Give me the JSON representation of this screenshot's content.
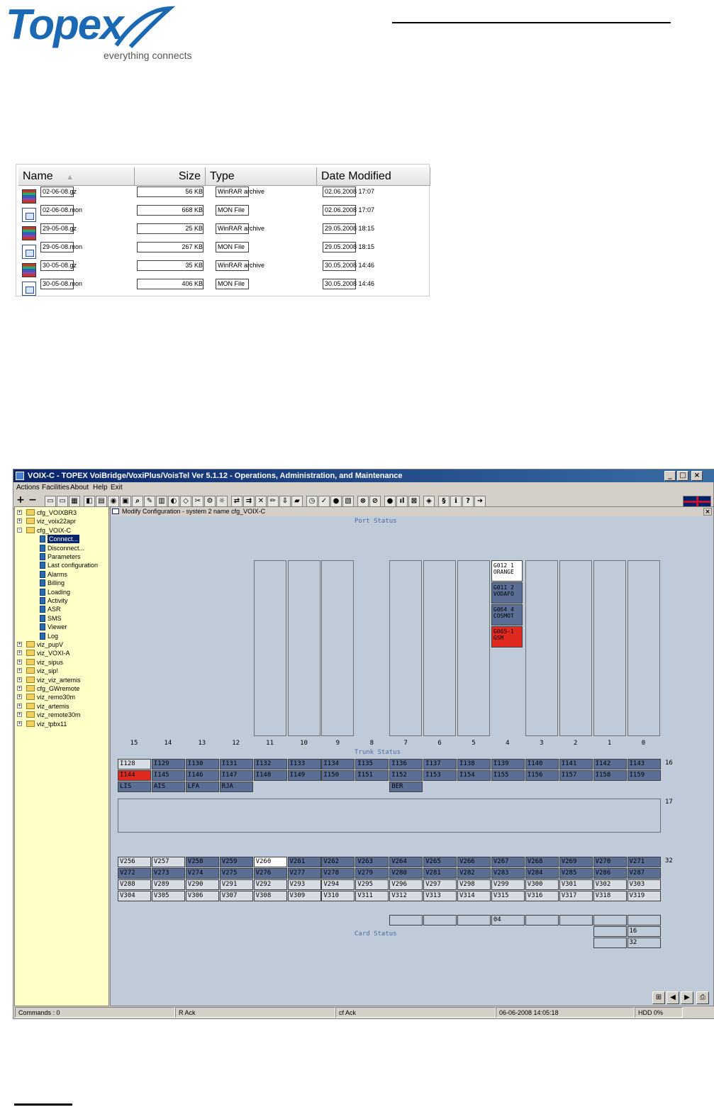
{
  "logo": {
    "word": "Topex",
    "tagline": "everything connects"
  },
  "explorer": {
    "columns": {
      "name": "Name",
      "size": "Size",
      "type": "Type",
      "date": "Date Modified"
    },
    "files": [
      {
        "name": "02-06-08.gz",
        "size": "56 KB",
        "type": "WinRAR archive",
        "date": "02.06.2008 17:07",
        "icon": "winrar-archive-icon"
      },
      {
        "name": "02-06-08.mon",
        "size": "668 KB",
        "type": "MON File",
        "date": "02.06.2008 17:07",
        "icon": "mon-file-icon"
      },
      {
        "name": "29-05-08.gz",
        "size": "25 KB",
        "type": "WinRAR archive",
        "date": "29.05.2008 18:15",
        "icon": "winrar-archive-icon"
      },
      {
        "name": "29-05-08.mon",
        "size": "267 KB",
        "type": "MON File",
        "date": "29.05.2008 18:15",
        "icon": "mon-file-icon"
      },
      {
        "name": "30-05-08.gz",
        "size": "35 KB",
        "type": "WinRAR archive",
        "date": "30.05.2008 14:46",
        "icon": "winrar-archive-icon"
      },
      {
        "name": "30-05-08.mon",
        "size": "406 KB",
        "type": "MON File",
        "date": "30.05.2008 14:46",
        "icon": "mon-file-icon"
      }
    ]
  },
  "app": {
    "title": "VOIX-C - TOPEX VoiBridge/VoxiPlus/VoisTel Ver 5.1.12 - Operations, Administration, and Maintenance",
    "menu": [
      "Actions",
      "Facilities",
      "About",
      "Help",
      "Exit"
    ],
    "tree": {
      "items": [
        {
          "label": "cfg_VOIXBR3",
          "kind": "folder",
          "expander": "+"
        },
        {
          "label": "viz_voix22apr",
          "kind": "folder",
          "expander": "+"
        },
        {
          "label": "cfg_VOIX-C",
          "kind": "folder",
          "expander": "-"
        },
        {
          "label": "Connect...",
          "kind": "doc",
          "selected": true
        },
        {
          "label": "Disconnect...",
          "kind": "doc"
        },
        {
          "label": "Parameters",
          "kind": "doc"
        },
        {
          "label": "Last configuration",
          "kind": "doc"
        },
        {
          "label": "Alarms",
          "kind": "doc"
        },
        {
          "label": "Billing",
          "kind": "doc"
        },
        {
          "label": "Loading",
          "kind": "doc"
        },
        {
          "label": "Activity",
          "kind": "doc"
        },
        {
          "label": "ASR",
          "kind": "doc"
        },
        {
          "label": "SMS",
          "kind": "doc"
        },
        {
          "label": "Viewer",
          "kind": "doc"
        },
        {
          "label": "Log",
          "kind": "doc"
        },
        {
          "label": "viz_pupV",
          "kind": "folder",
          "expander": "+"
        },
        {
          "label": "viz_VOXI-A",
          "kind": "folder",
          "expander": "+"
        },
        {
          "label": "viz_sipus",
          "kind": "folder",
          "expander": "+"
        },
        {
          "label": "viz_sip!",
          "kind": "folder",
          "expander": "+"
        },
        {
          "label": "viz_viz_artemis",
          "kind": "folder",
          "expander": "+"
        },
        {
          "label": "cfg_GWremote",
          "kind": "folder",
          "expander": "+"
        },
        {
          "label": "viz_remo30m",
          "kind": "folder",
          "expander": "+"
        },
        {
          "label": "viz_artemis",
          "kind": "folder",
          "expander": "+"
        },
        {
          "label": "viz_remote30m",
          "kind": "folder",
          "expander": "+"
        },
        {
          "label": "viz_tpbx11",
          "kind": "folder",
          "expander": "+"
        }
      ]
    },
    "mdi": {
      "title": "Modify Configuration - system 2 name cfg_VOIX-C",
      "port_status_label": "Port Status",
      "trunk_status_label": "Trunk Status",
      "card_status_label": "Card Status",
      "port_columns": [
        "15",
        "14",
        "13",
        "12",
        "11",
        "10",
        "9",
        "8",
        "7",
        "6",
        "5",
        "4",
        "3",
        "2",
        "1",
        "0"
      ],
      "ports_col4": [
        {
          "text": "G012 1\nORANGE",
          "color": "white"
        },
        {
          "text": "G011 2\nVODAFO",
          "color": "blue"
        },
        {
          "text": "G064 4\nCOSMOT",
          "color": "blue"
        },
        {
          "text": "G065-1\nGSM",
          "color": "red"
        }
      ],
      "trunk_rows": [
        {
          "label": "16",
          "cells": [
            {
              "t": "I128",
              "c": "light"
            },
            {
              "t": "I129",
              "c": "blue"
            },
            {
              "t": "I130",
              "c": "blue"
            },
            {
              "t": "I131",
              "c": "blue"
            },
            {
              "t": "I132",
              "c": "blue"
            },
            {
              "t": "I133",
              "c": "blue"
            },
            {
              "t": "I134",
              "c": "blue"
            },
            {
              "t": "I135",
              "c": "blue"
            },
            {
              "t": "I136",
              "c": "blue"
            },
            {
              "t": "I137",
              "c": "blue"
            },
            {
              "t": "I138",
              "c": "blue"
            },
            {
              "t": "I139",
              "c": "blue"
            },
            {
              "t": "I140",
              "c": "blue"
            },
            {
              "t": "I141",
              "c": "blue"
            },
            {
              "t": "I142",
              "c": "blue"
            },
            {
              "t": "I143",
              "c": "blue"
            }
          ]
        },
        {
          "label": "",
          "cells": [
            {
              "t": "I144",
              "c": "red"
            },
            {
              "t": "I145",
              "c": "blue"
            },
            {
              "t": "I146",
              "c": "blue"
            },
            {
              "t": "I147",
              "c": "blue"
            },
            {
              "t": "I148",
              "c": "blue"
            },
            {
              "t": "I149",
              "c": "blue"
            },
            {
              "t": "I150",
              "c": "blue"
            },
            {
              "t": "I151",
              "c": "blue"
            },
            {
              "t": "I152",
              "c": "blue"
            },
            {
              "t": "I153",
              "c": "blue"
            },
            {
              "t": "I154",
              "c": "blue"
            },
            {
              "t": "I155",
              "c": "blue"
            },
            {
              "t": "I156",
              "c": "blue"
            },
            {
              "t": "I157",
              "c": "blue"
            },
            {
              "t": "I158",
              "c": "blue"
            },
            {
              "t": "I159",
              "c": "blue"
            }
          ]
        }
      ],
      "alarm_row": [
        {
          "t": "LIS",
          "c": "blue",
          "i": 0
        },
        {
          "t": "AIS",
          "c": "blue",
          "i": 1
        },
        {
          "t": "LFA",
          "c": "blue",
          "i": 2
        },
        {
          "t": "RJA",
          "c": "blue",
          "i": 3
        },
        {
          "t": "BER",
          "c": "blue",
          "i": 8
        }
      ],
      "sig_label": "17",
      "voice_label": "32",
      "voice_rows": [
        [
          {
            "t": "V256",
            "c": "light"
          },
          {
            "t": "V257",
            "c": "light"
          },
          {
            "t": "V258",
            "c": "blue"
          },
          {
            "t": "V259",
            "c": "blue"
          },
          {
            "t": "V260",
            "c": "white"
          },
          {
            "t": "V261",
            "c": "blue"
          },
          {
            "t": "V262",
            "c": "blue"
          },
          {
            "t": "V263",
            "c": "blue"
          },
          {
            "t": "V264",
            "c": "blue"
          },
          {
            "t": "V265",
            "c": "blue"
          },
          {
            "t": "V266",
            "c": "blue"
          },
          {
            "t": "V267",
            "c": "blue"
          },
          {
            "t": "V268",
            "c": "blue"
          },
          {
            "t": "V269",
            "c": "blue"
          },
          {
            "t": "V270",
            "c": "blue"
          },
          {
            "t": "V271",
            "c": "blue"
          }
        ],
        [
          {
            "t": "V272",
            "c": "blue"
          },
          {
            "t": "V273",
            "c": "blue"
          },
          {
            "t": "V274",
            "c": "blue"
          },
          {
            "t": "V275",
            "c": "blue"
          },
          {
            "t": "V276",
            "c": "blue"
          },
          {
            "t": "V277",
            "c": "blue"
          },
          {
            "t": "V278",
            "c": "blue"
          },
          {
            "t": "V279",
            "c": "blue"
          },
          {
            "t": "V280",
            "c": "blue"
          },
          {
            "t": "V281",
            "c": "blue"
          },
          {
            "t": "V282",
            "c": "blue"
          },
          {
            "t": "V283",
            "c": "blue"
          },
          {
            "t": "V284",
            "c": "blue"
          },
          {
            "t": "V285",
            "c": "blue"
          },
          {
            "t": "V286",
            "c": "blue"
          },
          {
            "t": "V287",
            "c": "blue"
          }
        ],
        [
          {
            "t": "V288",
            "c": "light"
          },
          {
            "t": "V289",
            "c": "light"
          },
          {
            "t": "V290",
            "c": "light"
          },
          {
            "t": "V291",
            "c": "light"
          },
          {
            "t": "V292",
            "c": "light"
          },
          {
            "t": "V293",
            "c": "light"
          },
          {
            "t": "V294",
            "c": "light"
          },
          {
            "t": "V295",
            "c": "light"
          },
          {
            "t": "V296",
            "c": "light"
          },
          {
            "t": "V297",
            "c": "light"
          },
          {
            "t": "V298",
            "c": "light"
          },
          {
            "t": "V299",
            "c": "light"
          },
          {
            "t": "V300",
            "c": "light"
          },
          {
            "t": "V301",
            "c": "light"
          },
          {
            "t": "V302",
            "c": "light"
          },
          {
            "t": "V303",
            "c": "light"
          }
        ],
        [
          {
            "t": "V304",
            "c": "light"
          },
          {
            "t": "V305",
            "c": "light"
          },
          {
            "t": "V306",
            "c": "light"
          },
          {
            "t": "V307",
            "c": "light"
          },
          {
            "t": "V308",
            "c": "light"
          },
          {
            "t": "V309",
            "c": "light"
          },
          {
            "t": "V310",
            "c": "light"
          },
          {
            "t": "V311",
            "c": "light"
          },
          {
            "t": "V312",
            "c": "light"
          },
          {
            "t": "V313",
            "c": "light"
          },
          {
            "t": "V314",
            "c": "light"
          },
          {
            "t": "V315",
            "c": "light"
          },
          {
            "t": "V316",
            "c": "light"
          },
          {
            "t": "V317",
            "c": "light"
          },
          {
            "t": "V318",
            "c": "light"
          },
          {
            "t": "V319",
            "c": "light"
          }
        ]
      ],
      "card_row": [
        {
          "t": "",
          "i": 8
        },
        {
          "t": "",
          "i": 9
        },
        {
          "t": "",
          "i": 10
        },
        {
          "t": "04",
          "i": 11,
          "c": "blue"
        },
        {
          "t": "",
          "i": 12
        },
        {
          "t": "",
          "i": 13
        },
        {
          "t": "",
          "i": 14
        },
        {
          "t": "",
          "i": 15
        }
      ],
      "card_extra": [
        {
          "t": "16",
          "row": 1
        },
        {
          "t": "32",
          "row": 2
        }
      ]
    },
    "status": {
      "commands": "Commands : 0",
      "rack": "R Ack",
      "cfack": "cf Ack",
      "datetime": "06-06-2008 14:05:18",
      "hdd": "HDD 0%"
    },
    "colors": {
      "blue": "#5a6e96",
      "red": "#e02a20",
      "panel": "#bfcbd8",
      "tree": "#ffffc8"
    }
  }
}
